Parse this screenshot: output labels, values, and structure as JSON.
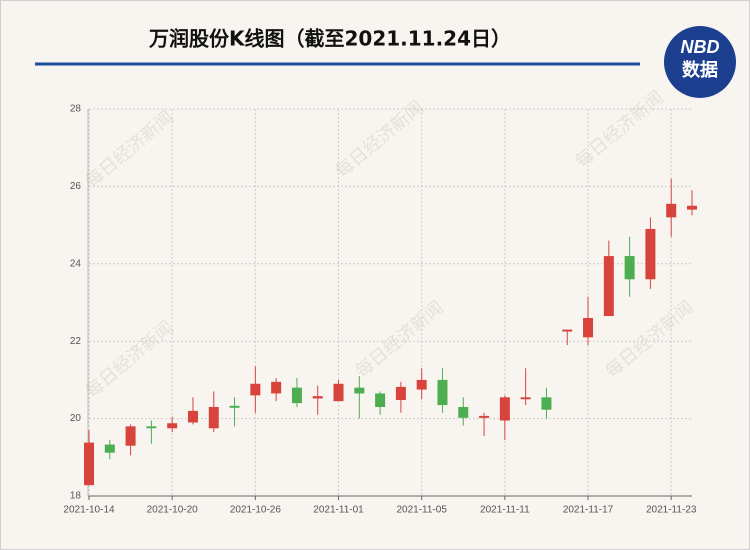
{
  "chart_data": {
    "type": "candlestick",
    "title": "万润股份K线图（截至2021.11.24日）",
    "logo": [
      "NBD",
      "数据"
    ],
    "watermark": "每日经济新闻",
    "categories": [
      "2021-10-14",
      null,
      null,
      null,
      "2021-10-20",
      null,
      null,
      null,
      "2021-10-26",
      null,
      null,
      null,
      "2021-11-01",
      null,
      null,
      null,
      "2021-11-05",
      null,
      null,
      null,
      "2021-11-11",
      null,
      null,
      null,
      "2021-11-17",
      null,
      null,
      null,
      "2021-11-23",
      null
    ],
    "open": [
      18.28,
      19.33,
      19.3,
      19.8,
      19.75,
      19.9,
      19.75,
      20.33,
      20.6,
      20.65,
      20.8,
      20.52,
      20.45,
      20.8,
      20.65,
      20.48,
      20.75,
      21.0,
      20.3,
      20.02,
      19.95,
      20.5,
      20.55,
      22.25,
      22.1,
      22.65,
      24.2,
      23.6,
      25.2,
      25.4
    ],
    "high": [
      19.7,
      19.45,
      19.85,
      19.95,
      20.05,
      20.55,
      20.7,
      20.55,
      21.35,
      21.05,
      21.05,
      20.85,
      21.0,
      21.1,
      20.7,
      20.95,
      21.3,
      21.3,
      20.55,
      20.15,
      20.6,
      21.3,
      20.8,
      22.3,
      23.15,
      24.6,
      24.7,
      25.2,
      26.2,
      25.9
    ],
    "low": [
      18.28,
      18.95,
      19.05,
      19.35,
      19.65,
      19.85,
      19.65,
      19.8,
      20.15,
      20.45,
      20.3,
      20.1,
      20.45,
      20.0,
      20.1,
      20.15,
      20.5,
      20.15,
      19.82,
      19.55,
      19.45,
      20.35,
      20.0,
      21.9,
      21.9,
      22.65,
      23.15,
      23.35,
      24.7,
      25.25
    ],
    "close": [
      19.38,
      19.12,
      19.8,
      19.75,
      19.88,
      20.2,
      20.3,
      20.28,
      20.9,
      20.95,
      20.4,
      20.58,
      20.9,
      20.65,
      20.3,
      20.82,
      21.0,
      20.35,
      20.02,
      20.07,
      20.55,
      20.55,
      20.23,
      22.3,
      22.6,
      24.2,
      23.6,
      24.9,
      25.55,
      25.5
    ],
    "up_color": "#d8433b",
    "down_color": "#4cae50",
    "ylim": [
      18,
      28
    ],
    "yticks": [
      18,
      20,
      22,
      24,
      26,
      28
    ],
    "grid": true
  }
}
